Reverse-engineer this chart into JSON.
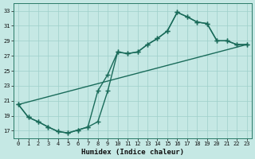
{
  "title": "",
  "xlabel": "Humidex (Indice chaleur)",
  "ylabel": "",
  "xlim": [
    -0.5,
    23.5
  ],
  "ylim": [
    16,
    34
  ],
  "yticks": [
    17,
    19,
    21,
    23,
    25,
    27,
    29,
    31,
    33
  ],
  "xticks": [
    0,
    1,
    2,
    3,
    4,
    5,
    6,
    7,
    8,
    9,
    10,
    11,
    12,
    13,
    14,
    15,
    16,
    17,
    18,
    19,
    20,
    21,
    22,
    23
  ],
  "bg_color": "#c5e8e4",
  "line_color": "#1a6b5a",
  "grid_color": "#9ecfca",
  "curve1_x": [
    0,
    1,
    2,
    3,
    4,
    5,
    6,
    7,
    8,
    9,
    10,
    11,
    12,
    13,
    14,
    15,
    16,
    17,
    18,
    19,
    20,
    21,
    22,
    23
  ],
  "curve1_y": [
    20.5,
    18.8,
    18.2,
    17.5,
    16.9,
    16.7,
    17.1,
    17.5,
    18.2,
    22.3,
    27.5,
    27.3,
    27.5,
    28.5,
    29.3,
    30.3,
    32.8,
    32.2,
    31.5,
    31.3,
    29.0,
    29.0,
    28.5,
    28.5
  ],
  "curve2_x": [
    0,
    1,
    2,
    3,
    4,
    5,
    6,
    7,
    8,
    9,
    10,
    11,
    12,
    13,
    14,
    15,
    16,
    17,
    18,
    19,
    20,
    21,
    22,
    23
  ],
  "curve2_y": [
    20.5,
    18.8,
    18.2,
    17.5,
    16.9,
    16.7,
    17.1,
    17.5,
    22.3,
    24.5,
    27.5,
    27.3,
    27.5,
    28.5,
    29.3,
    30.3,
    32.8,
    32.2,
    31.5,
    31.3,
    29.0,
    29.0,
    28.5,
    28.5
  ],
  "line3_x": [
    0,
    23
  ],
  "line3_y": [
    20.5,
    28.5
  ],
  "marker": "+",
  "markersize": 4,
  "markeredgewidth": 1.0,
  "linewidth": 1.0
}
